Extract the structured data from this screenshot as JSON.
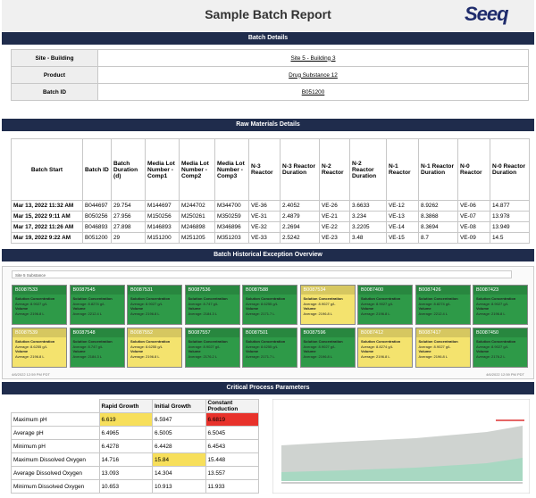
{
  "header": {
    "title": "Sample Batch Report",
    "logo": "Seeq"
  },
  "batch_details": {
    "title": "Batch Details",
    "rows": [
      [
        "Site - Building",
        "Site 5 - Building 3"
      ],
      [
        "Product",
        "Drug Substance 12"
      ],
      [
        "Batch ID",
        "B051200"
      ]
    ]
  },
  "raw_materials": {
    "title": "Raw Materials Details",
    "columns": [
      "Batch Start",
      "Batch ID",
      "Batch Duration (d)",
      "Media Lot Number - Comp1",
      "Media Lot Number - Comp2",
      "Media Lot Number - Comp3",
      "N-3 Reactor",
      "N-3 Reactor Duration",
      "N-2 Reactor",
      "N-2 Reactor Duration",
      "N-1 Reactor",
      "N-1 Reactor Duration",
      "N-0 Reactor",
      "N-0 Reactor Duration"
    ],
    "rows": [
      [
        "Mar 13, 2022 11:32 AM",
        "B044697",
        "29.754",
        "M144697",
        "M244702",
        "M344700",
        "VE-36",
        "2.4052",
        "VE-26",
        "3.6633",
        "VE-12",
        "8.9262",
        "VE-06",
        "14.877"
      ],
      [
        "Mar 15, 2022 9:11 AM",
        "B050256",
        "27.956",
        "M150256",
        "M250261",
        "M350259",
        "VE-31",
        "2.4879",
        "VE-21",
        "3.234",
        "VE-13",
        "8.3868",
        "VE-07",
        "13.978"
      ],
      [
        "Mar 17, 2022 11:26 AM",
        "B046893",
        "27.898",
        "M146893",
        "M246898",
        "M346896",
        "VE-32",
        "2.2694",
        "VE-22",
        "3.2205",
        "VE-14",
        "8.3694",
        "VE-08",
        "13.949"
      ],
      [
        "Mar 19, 2022 9:22 AM",
        "B051200",
        "29",
        "M151200",
        "M251205",
        "M351203",
        "VE-33",
        "2.5242",
        "VE-23",
        "3.48",
        "VE-15",
        "8.7",
        "VE-09",
        "14.5"
      ]
    ]
  },
  "exceptions": {
    "title": "Batch Historical Exception Overview",
    "panel_label": "Site 5 Substance",
    "conc_label": "Solution Concentration",
    "vol_label": "Volume",
    "footer_left": "4/6/2022 12:59 PM PDT",
    "footer_right": "4/6/2022 12:59 PM PDT",
    "tiles": [
      {
        "id": "B0087533",
        "color": "#2e9a48",
        "conc": "Average: 8.9027 g/L",
        "vol": "Average: 2196.8 L"
      },
      {
        "id": "B0087545",
        "color": "#2e9a48",
        "conc": "Average: 8.8274 g/L",
        "vol": "Average: 2212.4 L"
      },
      {
        "id": "B0087531",
        "color": "#2e9a48",
        "conc": "Average: 8.9027 g/L",
        "vol": "Average: 2196.8 L"
      },
      {
        "id": "B0087536",
        "color": "#2e9a48",
        "conc": "Average: 8.747 g/L",
        "vol": "Average: 2184.3 L"
      },
      {
        "id": "B0087588",
        "color": "#2e9a48",
        "conc": "Average: 8.6255 g/L",
        "vol": "Average: 2171.7 L"
      },
      {
        "id": "B0087534",
        "color": "#f4e36e",
        "conc": "Average: 8.9027 g/L",
        "vol": "Average: 2196.8 L"
      },
      {
        "id": "B0087400",
        "color": "#2e9a48",
        "conc": "Average: 8.9027 g/L",
        "vol": "Average: 2196.8 L"
      },
      {
        "id": "B0087426",
        "color": "#2e9a48",
        "conc": "Average: 8.8274 g/L",
        "vol": "Average: 2212.4 L"
      },
      {
        "id": "B0087423",
        "color": "#2e9a48",
        "conc": "Average: 8.9027 g/L",
        "vol": "Average: 2196.8 L"
      },
      {
        "id": "B0087539",
        "color": "#f4e36e",
        "conc": "Average: 8.6255 g/L",
        "vol": "Average: 2196.8 L"
      },
      {
        "id": "B0087548",
        "color": "#2e9a48",
        "conc": "Average: 8.747 g/L",
        "vol": "Average: 2184.3 L"
      },
      {
        "id": "B0087552",
        "color": "#f4e36e",
        "conc": "Average: 8.6255 g/L",
        "vol": "Average: 2196.8 L"
      },
      {
        "id": "B0087557",
        "color": "#2e9a48",
        "conc": "Average: 8.9027 g/L",
        "vol": "Average: 2176.2 L"
      },
      {
        "id": "B0087501",
        "color": "#2e9a48",
        "conc": "Average: 8.6255 g/L",
        "vol": "Average: 2171.7 L"
      },
      {
        "id": "B0087596",
        "color": "#2e9a48",
        "conc": "Average: 8.9027 g/L",
        "vol": "Average: 2196.8 L"
      },
      {
        "id": "B0087412",
        "color": "#f4e36e",
        "conc": "Average: 8.8274 g/L",
        "vol": "Average: 2196.8 L"
      },
      {
        "id": "B0087417",
        "color": "#f4e36e",
        "conc": "Average: 8.9027 g/L",
        "vol": "Average: 2196.8 L"
      },
      {
        "id": "B0087450",
        "color": "#2e9a48",
        "conc": "Average: 8.9027 g/L",
        "vol": "Average: 2176.2 L"
      }
    ]
  },
  "cpp": {
    "title": "Critical Process Parameters",
    "columns": [
      "Rapid Growth",
      "Initial Growth",
      "Constant Production"
    ],
    "rows": [
      [
        "Maximum pH",
        {
          "text": "6.619",
          "color": "#f7df5b"
        },
        "6.5947",
        {
          "text": "6.6819",
          "color": "#e8322b"
        }
      ],
      [
        "Average pH",
        "6.4965",
        "6.5005",
        "6.5045"
      ],
      [
        "Minimum pH",
        "6.4278",
        "6.4428",
        "6.4543"
      ],
      [
        "Maximum Dissolved Oxygen",
        "14.716",
        {
          "text": "15.84",
          "color": "#f7df5b"
        },
        "15.448"
      ],
      [
        "Average Dissolved Oxygen",
        "13.093",
        "14.304",
        "13.557"
      ],
      [
        "Minimum Dissolved Oxygen",
        "10.653",
        "10.913",
        "11.933"
      ]
    ]
  }
}
